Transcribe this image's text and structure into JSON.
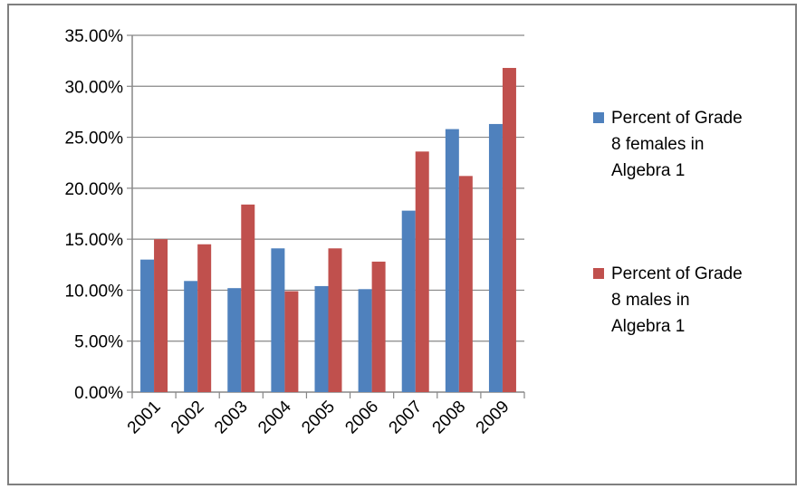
{
  "chart_data": {
    "type": "bar",
    "categories": [
      "2001",
      "2002",
      "2003",
      "2004",
      "2005",
      "2006",
      "2007",
      "2008",
      "2009"
    ],
    "series": [
      {
        "name": "Percent of Grade 8 females in Algebra 1",
        "legend_lines": [
          "Percent of Grade",
          "8 females in",
          "Algebra 1"
        ],
        "color": "#4f81bd",
        "values": [
          13.0,
          10.9,
          10.2,
          14.1,
          10.4,
          10.1,
          17.8,
          25.8,
          26.3
        ]
      },
      {
        "name": "Percent of Grade 8 males in Algebra 1",
        "legend_lines": [
          "Percent of Grade",
          "8 males in",
          "Algebra 1"
        ],
        "color": "#c0504d",
        "values": [
          15.0,
          14.5,
          18.4,
          9.9,
          14.1,
          12.8,
          23.6,
          21.2,
          31.8
        ]
      }
    ],
    "y_ticks": [
      "0.00%",
      "5.00%",
      "10.00%",
      "15.00%",
      "20.00%",
      "25.00%",
      "30.00%",
      "35.00%"
    ],
    "ylim": [
      0,
      35
    ],
    "title": "",
    "xlabel": "",
    "ylabel": "",
    "grid": true,
    "legend_position": "right"
  }
}
